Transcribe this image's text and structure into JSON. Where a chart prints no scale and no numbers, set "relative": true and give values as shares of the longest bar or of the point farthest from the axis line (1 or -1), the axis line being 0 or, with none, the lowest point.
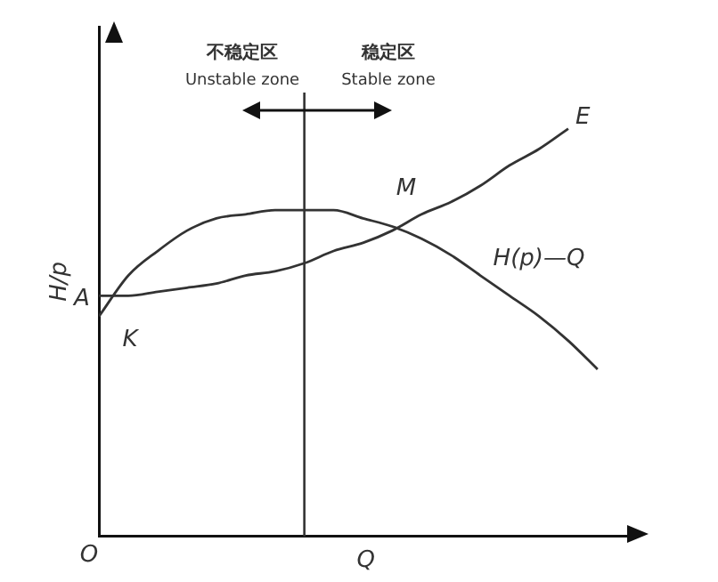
{
  "chart_data": {
    "type": "line",
    "relative": true,
    "xlabel": "Q",
    "ylabel": "H/p",
    "categories": [
      null,
      null,
      null,
      null,
      null,
      null,
      null,
      null,
      null,
      null,
      null,
      null,
      null,
      null,
      null,
      null,
      null,
      null
    ],
    "series": [
      {
        "name": "H(p)—Q",
        "color": "#333333",
        "values": [
          0.54,
          0.64,
          0.7,
          0.75,
          0.78,
          0.79,
          0.8,
          0.8,
          0.8,
          0.78,
          0.76,
          0.73,
          0.69,
          0.64,
          0.59,
          0.54,
          0.48,
          0.41
        ]
      },
      {
        "name": "E",
        "color": "#333333",
        "values": [
          0.59,
          0.59,
          0.6,
          0.61,
          0.62,
          0.64,
          0.65,
          0.67,
          0.7,
          0.72,
          0.75,
          0.79,
          0.82,
          0.86,
          0.91,
          0.95,
          1,
          null
        ]
      }
    ],
    "annotations": [
      "O",
      "A",
      "K",
      "M",
      "不稳定区",
      "Unstable zone",
      "稳定区",
      "Stable zone"
    ],
    "legend": false,
    "marker": "none",
    "line_style": "solid"
  }
}
